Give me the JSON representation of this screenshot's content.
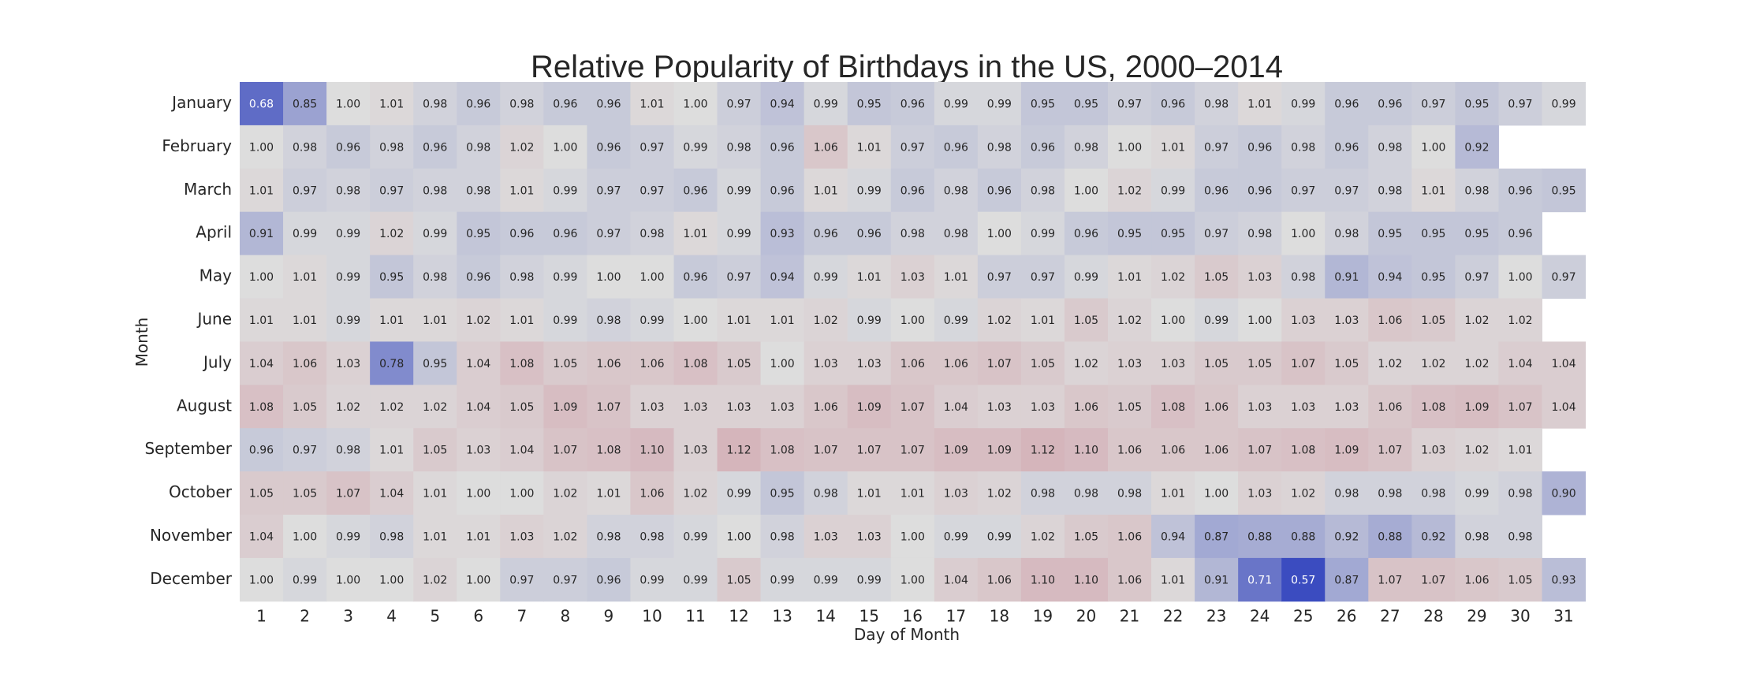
{
  "chart_data": {
    "type": "heatmap",
    "title": "Relative Popularity of Birthdays in the US, 2000–2014",
    "xlabel": "Day of Month",
    "ylabel": "Month",
    "rows": [
      "January",
      "February",
      "March",
      "April",
      "May",
      "June",
      "July",
      "August",
      "September",
      "October",
      "November",
      "December"
    ],
    "columns": [
      "1",
      "2",
      "3",
      "4",
      "5",
      "6",
      "7",
      "8",
      "9",
      "10",
      "11",
      "12",
      "13",
      "14",
      "15",
      "16",
      "17",
      "18",
      "19",
      "20",
      "21",
      "22",
      "23",
      "24",
      "25",
      "26",
      "27",
      "28",
      "29",
      "30",
      "31"
    ],
    "values": [
      [
        0.68,
        0.85,
        1.0,
        1.01,
        0.98,
        0.96,
        0.98,
        0.96,
        0.96,
        1.01,
        1.0,
        0.97,
        0.94,
        0.99,
        0.95,
        0.96,
        0.99,
        0.99,
        0.95,
        0.95,
        0.97,
        0.96,
        0.98,
        1.01,
        0.99,
        0.96,
        0.96,
        0.97,
        0.95,
        0.97,
        0.99
      ],
      [
        1.0,
        0.98,
        0.96,
        0.98,
        0.96,
        0.98,
        1.02,
        1.0,
        0.96,
        0.97,
        0.99,
        0.98,
        0.96,
        1.06,
        1.01,
        0.97,
        0.96,
        0.98,
        0.96,
        0.98,
        1.0,
        1.01,
        0.97,
        0.96,
        0.98,
        0.96,
        0.98,
        1.0,
        0.92,
        null,
        null
      ],
      [
        1.01,
        0.97,
        0.98,
        0.97,
        0.98,
        0.98,
        1.01,
        0.99,
        0.97,
        0.97,
        0.96,
        0.99,
        0.96,
        1.01,
        0.99,
        0.96,
        0.98,
        0.96,
        0.98,
        1.0,
        1.02,
        0.99,
        0.96,
        0.96,
        0.97,
        0.97,
        0.98,
        1.01,
        0.98,
        0.96,
        0.95
      ],
      [
        0.91,
        0.99,
        0.99,
        1.02,
        0.99,
        0.95,
        0.96,
        0.96,
        0.97,
        0.98,
        1.01,
        0.99,
        0.93,
        0.96,
        0.96,
        0.98,
        0.98,
        1.0,
        0.99,
        0.96,
        0.95,
        0.95,
        0.97,
        0.98,
        1.0,
        0.98,
        0.95,
        0.95,
        0.95,
        0.96,
        null
      ],
      [
        1.0,
        1.01,
        0.99,
        0.95,
        0.98,
        0.96,
        0.98,
        0.99,
        1.0,
        1.0,
        0.96,
        0.97,
        0.94,
        0.99,
        1.01,
        1.03,
        1.01,
        0.97,
        0.97,
        0.99,
        1.01,
        1.02,
        1.05,
        1.03,
        0.98,
        0.91,
        0.94,
        0.95,
        0.97,
        1.0,
        0.97
      ],
      [
        1.01,
        1.01,
        0.99,
        1.01,
        1.01,
        1.02,
        1.01,
        0.99,
        0.98,
        0.99,
        1.0,
        1.01,
        1.01,
        1.02,
        0.99,
        1.0,
        0.99,
        1.02,
        1.01,
        1.05,
        1.02,
        1.0,
        0.99,
        1.0,
        1.03,
        1.03,
        1.06,
        1.05,
        1.02,
        1.02,
        null
      ],
      [
        1.04,
        1.06,
        1.03,
        0.78,
        0.95,
        1.04,
        1.08,
        1.05,
        1.06,
        1.06,
        1.08,
        1.05,
        1.0,
        1.03,
        1.03,
        1.06,
        1.06,
        1.07,
        1.05,
        1.02,
        1.03,
        1.03,
        1.05,
        1.05,
        1.07,
        1.05,
        1.02,
        1.02,
        1.02,
        1.04,
        1.04
      ],
      [
        1.08,
        1.05,
        1.02,
        1.02,
        1.02,
        1.04,
        1.05,
        1.09,
        1.07,
        1.03,
        1.03,
        1.03,
        1.03,
        1.06,
        1.09,
        1.07,
        1.04,
        1.03,
        1.03,
        1.06,
        1.05,
        1.08,
        1.06,
        1.03,
        1.03,
        1.03,
        1.06,
        1.08,
        1.09,
        1.07,
        1.04
      ],
      [
        0.96,
        0.97,
        0.98,
        1.01,
        1.05,
        1.03,
        1.04,
        1.07,
        1.08,
        1.1,
        1.03,
        1.12,
        1.08,
        1.07,
        1.07,
        1.07,
        1.09,
        1.09,
        1.12,
        1.1,
        1.06,
        1.06,
        1.06,
        1.07,
        1.08,
        1.09,
        1.07,
        1.03,
        1.02,
        1.01,
        null
      ],
      [
        1.05,
        1.05,
        1.07,
        1.04,
        1.01,
        1.0,
        1.0,
        1.02,
        1.01,
        1.06,
        1.02,
        0.99,
        0.95,
        0.98,
        1.01,
        1.01,
        1.03,
        1.02,
        0.98,
        0.98,
        0.98,
        1.01,
        1.0,
        1.03,
        1.02,
        0.98,
        0.98,
        0.98,
        0.99,
        0.98,
        0.9
      ],
      [
        1.04,
        1.0,
        0.99,
        0.98,
        1.01,
        1.01,
        1.03,
        1.02,
        0.98,
        0.98,
        0.99,
        1.0,
        0.98,
        1.03,
        1.03,
        1.0,
        0.99,
        0.99,
        1.02,
        1.05,
        1.06,
        0.94,
        0.87,
        0.88,
        0.88,
        0.92,
        0.88,
        0.92,
        0.98,
        0.98,
        null
      ],
      [
        1.0,
        0.99,
        1.0,
        1.0,
        1.02,
        1.0,
        0.97,
        0.97,
        0.96,
        0.99,
        0.99,
        1.05,
        0.99,
        0.99,
        0.99,
        1.0,
        1.04,
        1.06,
        1.1,
        1.1,
        1.06,
        1.01,
        0.91,
        0.71,
        0.57,
        0.87,
        1.07,
        1.07,
        1.06,
        1.05,
        0.93
      ]
    ],
    "colormap": "coolwarm",
    "center": 1.0,
    "vmin_display": 0.57,
    "vmax_display": 1.12,
    "colors": {
      "low": "#3b4cc0",
      "mid": "#dddddd",
      "high": "#b40426"
    },
    "grid": false,
    "legend": "none"
  }
}
